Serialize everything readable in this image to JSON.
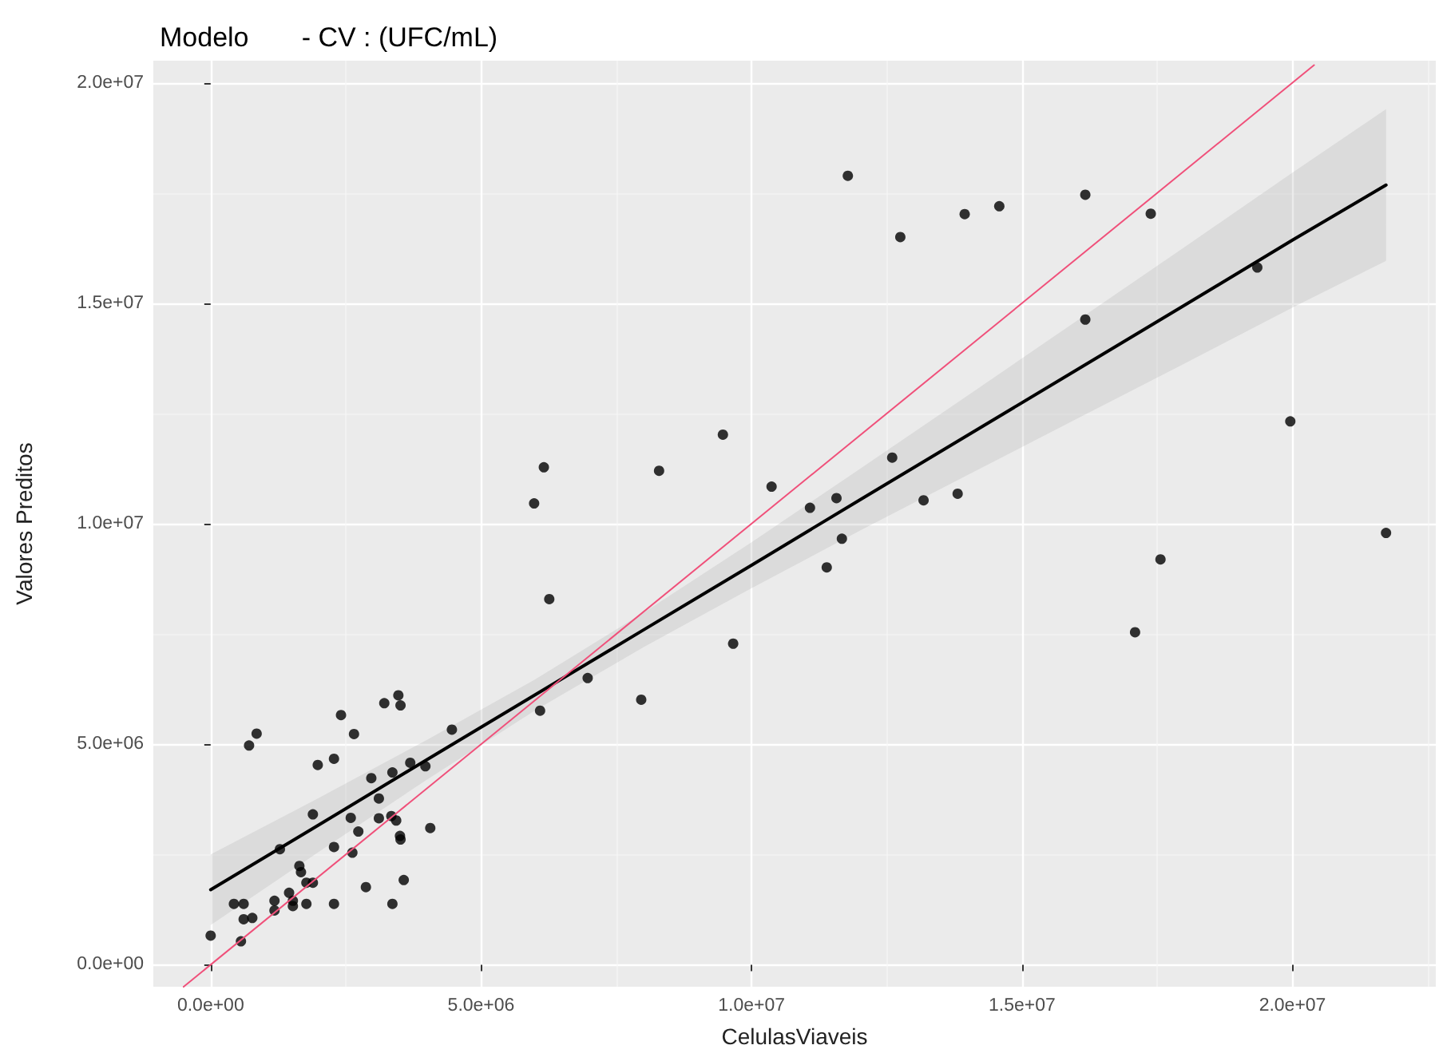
{
  "chart_data": {
    "type": "scatter",
    "title": "Modelo       - CV : (UFC/mL)",
    "xlabel": "CelulasViaveis",
    "ylabel": "Valores Preditos",
    "grid": true,
    "xlim": [
      -1060000,
      22650000
    ],
    "ylim": [
      -500000,
      20500000
    ],
    "xticks": [
      {
        "value": 0,
        "label": "0.0e+00"
      },
      {
        "value": 5000000,
        "label": "5.0e+06"
      },
      {
        "value": 10000000,
        "label": "1.0e+07"
      },
      {
        "value": 15000000,
        "label": "1.5e+07"
      },
      {
        "value": 20000000,
        "label": "2.0e+07"
      }
    ],
    "yticks": [
      {
        "value": 0,
        "label": "0.0e+00"
      },
      {
        "value": 5000000,
        "label": "5.0e+06"
      },
      {
        "value": 10000000,
        "label": "1.0e+07"
      },
      {
        "value": 15000000,
        "label": "1.5e+07"
      },
      {
        "value": 20000000,
        "label": "2.0e+07"
      }
    ],
    "series": [
      {
        "type": "scatter",
        "color": "#000000",
        "marker": "circle",
        "x": [
          0,
          430000,
          610000,
          560000,
          610000,
          770000,
          710000,
          850000,
          1180000,
          1180000,
          1280000,
          1450000,
          1520000,
          1520000,
          1640000,
          1670000,
          1770000,
          1890000,
          1770000,
          1890000,
          1980000,
          2280000,
          2280000,
          2280000,
          2410000,
          2590000,
          2620000,
          2650000,
          2730000,
          2870000,
          2970000,
          3110000,
          3110000,
          3210000,
          3360000,
          3340000,
          3430000,
          3360000,
          3470000,
          3510000,
          3500000,
          3510000,
          3570000,
          3690000,
          3970000,
          4060000,
          4460000,
          6160000,
          5980000,
          6260000,
          6090000,
          6970000,
          7960000,
          8290000,
          9470000,
          9660000,
          10370000,
          11080000,
          11570000,
          11670000,
          11390000,
          12600000,
          13180000,
          13810000,
          11780000,
          12750000,
          13940000,
          14580000,
          16170000,
          17380000,
          16170000,
          19350000,
          19960000,
          21730000,
          17560000,
          17090000
        ],
        "values": [
          660000,
          1380000,
          1380000,
          530000,
          1030000,
          1060000,
          4970000,
          5240000,
          1450000,
          1230000,
          2620000,
          1630000,
          1450000,
          1330000,
          2240000,
          2100000,
          1860000,
          1860000,
          1380000,
          3410000,
          4530000,
          4670000,
          2670000,
          1380000,
          5660000,
          3330000,
          2540000,
          5230000,
          3020000,
          1760000,
          4230000,
          3770000,
          3320000,
          5930000,
          4360000,
          3370000,
          3270000,
          1380000,
          6110000,
          5880000,
          2920000,
          2840000,
          1920000,
          4580000,
          4500000,
          3100000,
          5330000,
          11280000,
          10460000,
          8290000,
          5760000,
          6500000,
          6010000,
          11200000,
          12020000,
          7280000,
          10840000,
          10360000,
          10580000,
          9660000,
          9010000,
          11500000,
          10530000,
          10680000,
          17890000,
          16500000,
          17020000,
          17200000,
          17460000,
          17030000,
          14630000,
          15810000,
          12320000,
          9790000,
          9190000,
          7540000
        ]
      },
      {
        "type": "line",
        "color": "#000000",
        "marker": "none",
        "x": [
          0,
          2000000,
          4000000,
          6000000,
          8000000,
          10000000,
          12000000,
          14000000,
          16000000,
          18000000,
          20000000,
          21730000
        ],
        "values": [
          1700000,
          3170000,
          4650000,
          6120000,
          7590000,
          9060000,
          10540000,
          12010000,
          13480000,
          14950000,
          16430000,
          17680000
        ],
        "lower": [
          900000,
          2560000,
          4200000,
          5770000,
          7200000,
          8540000,
          9840000,
          11110000,
          12370000,
          13630000,
          14900000,
          15960000
        ],
        "upper": [
          2500000,
          3780000,
          5100000,
          6470000,
          7980000,
          9580000,
          11240000,
          12910000,
          14590000,
          16270000,
          17960000,
          19400000
        ]
      },
      {
        "type": "line",
        "color": "#f0507a",
        "marker": "none",
        "x": [
          -500000,
          20400000
        ],
        "values": [
          -500000,
          20400000
        ]
      }
    ]
  }
}
